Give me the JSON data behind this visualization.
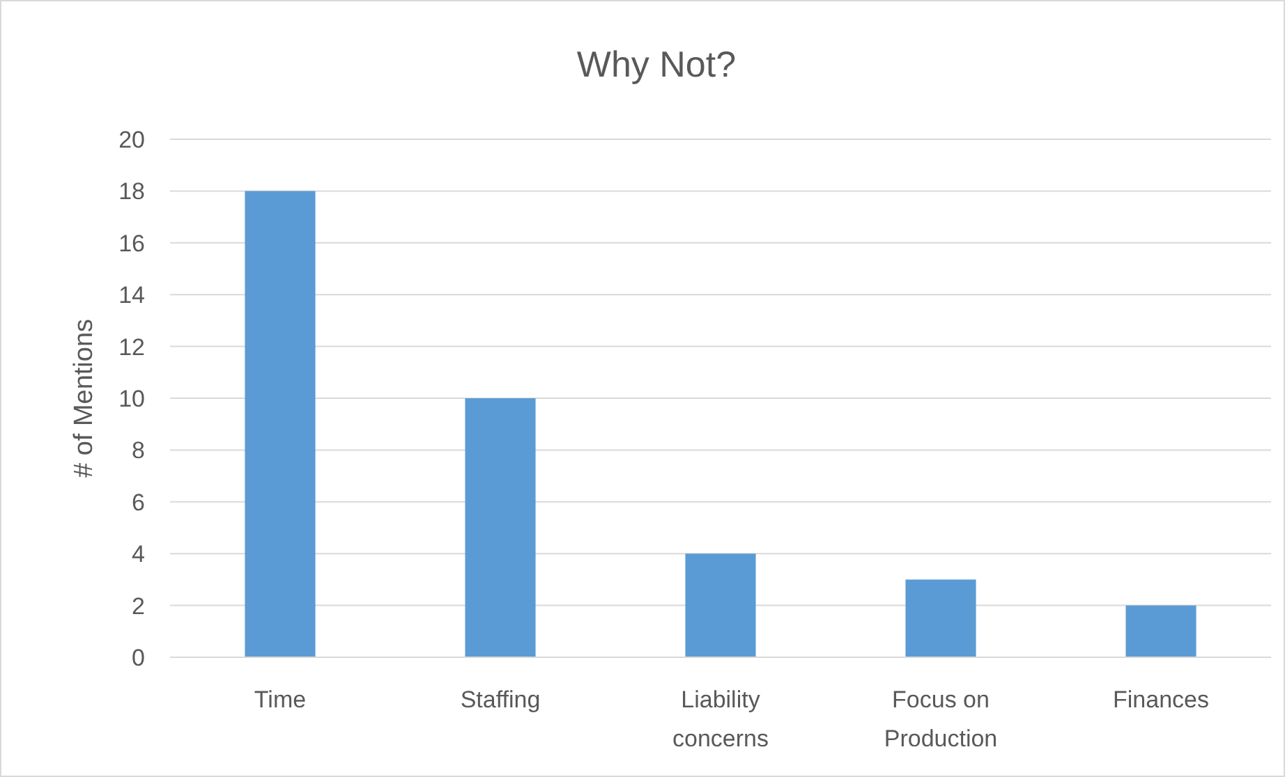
{
  "chart_data": {
    "type": "bar",
    "title": "Why Not?",
    "ylabel": "# of Mentions",
    "categories": [
      "Time",
      "Staffing",
      "Liability concerns",
      "Focus on Production",
      "Finances"
    ],
    "values": [
      18,
      10,
      4,
      3,
      2
    ],
    "color": "#5b9bd5",
    "ylim": [
      0,
      20
    ],
    "yticks": [
      0,
      2,
      4,
      6,
      8,
      10,
      12,
      14,
      16,
      18,
      20
    ],
    "grid": "y"
  }
}
